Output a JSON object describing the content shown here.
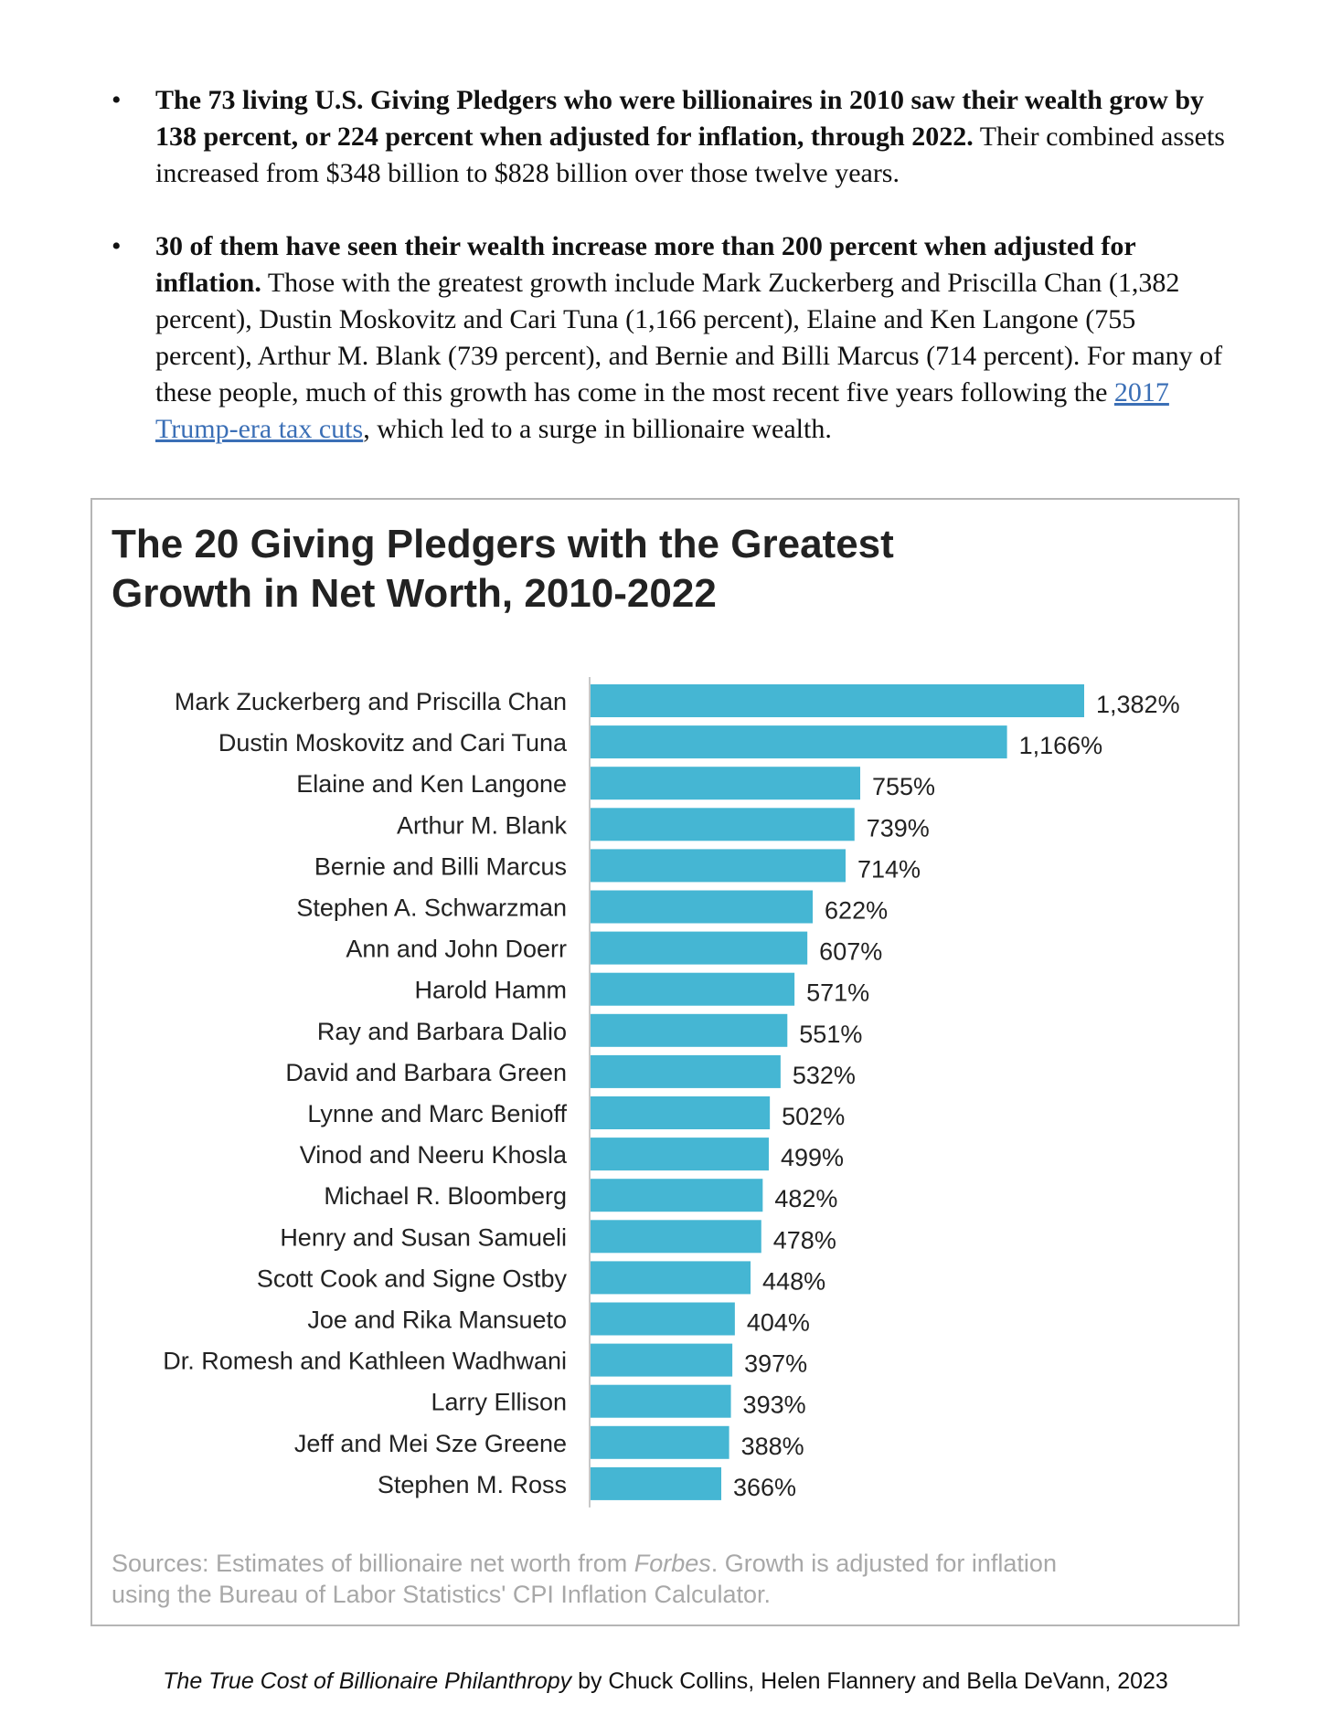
{
  "bullets": [
    {
      "bold": "The 73 living U.S. Giving Pledgers who were billionaires in 2010 saw their wealth grow by 138 percent, or 224 percent when adjusted for inflation, through 2022.",
      "text": " Their combined assets increased from $348 billion to $828 billion over those twelve years."
    },
    {
      "bold": "30 of them have seen their wealth increase more than 200 percent when adjusted for inflation.",
      "text_before_link": " Those with the greatest growth include Mark Zuckerberg and Priscilla Chan (1,382 percent), Dustin Moskovitz and Cari Tuna (1,166 percent), Elaine and Ken Langone (755 percent), Arthur M. Blank (739 percent), and Bernie and Billi Marcus (714 percent). For many of these people, much of this growth has come in the most recent five years following the ",
      "link": "2017 Trump-era tax cuts",
      "text_after_link": ", which led to a surge in billionaire wealth."
    }
  ],
  "bullet_symbol": "•",
  "chart_data": {
    "type": "bar",
    "orientation": "horizontal",
    "title_line1": "The 20 Giving Pledgers with the Greatest",
    "title_line2": "Growth in Net Worth, 2010-2022",
    "categories": [
      "Mark Zuckerberg and Priscilla Chan",
      "Dustin Moskovitz and Cari Tuna",
      "Elaine and Ken Langone",
      "Arthur M. Blank",
      "Bernie and Billi Marcus",
      "Stephen A. Schwarzman",
      "Ann and John Doerr",
      "Harold Hamm",
      "Ray and Barbara Dalio",
      "David and Barbara Green",
      "Lynne and Marc Benioff",
      "Vinod and Neeru Khosla",
      "Michael R. Bloomberg",
      "Henry and Susan Samueli",
      "Scott Cook and Signe Ostby",
      "Joe and Rika Mansueto",
      "Dr. Romesh and Kathleen Wadhwani",
      "Larry Ellison",
      "Jeff and Mei Sze Greene",
      "Stephen M. Ross"
    ],
    "values": [
      1382,
      1166,
      755,
      739,
      714,
      622,
      607,
      571,
      551,
      532,
      502,
      499,
      482,
      478,
      448,
      404,
      397,
      393,
      388,
      366
    ],
    "value_labels": [
      "1,382%",
      "1,166%",
      "755%",
      "739%",
      "714%",
      "622%",
      "607%",
      "571%",
      "551%",
      "532%",
      "502%",
      "499%",
      "482%",
      "478%",
      "448%",
      "404%",
      "397%",
      "393%",
      "388%",
      "366%"
    ],
    "xlim": [
      0,
      1382
    ],
    "bar_color": "#45b6d3",
    "grid": false,
    "legend": "none",
    "sources_prefix": "Sources: Estimates of billionaire net worth from ",
    "sources_italic": "Forbes",
    "sources_suffix": ". Growth is adjusted for inflation using the Bureau of Labor Statistics' CPI Inflation Calculator."
  },
  "footer": {
    "italic": "The True Cost of Billionaire Philanthropy",
    "text": " by Chuck Collins, Helen Flannery and Bella DeVann, 2023"
  }
}
